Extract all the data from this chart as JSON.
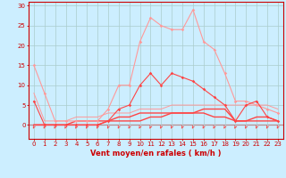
{
  "x": [
    0,
    1,
    2,
    3,
    4,
    5,
    6,
    7,
    8,
    9,
    10,
    11,
    12,
    13,
    14,
    15,
    16,
    17,
    18,
    19,
    20,
    21,
    22,
    23
  ],
  "series": [
    {
      "color": "#ff9999",
      "linewidth": 0.8,
      "marker": "D",
      "markersize": 1.8,
      "values": [
        15,
        8,
        1,
        1,
        1,
        1,
        1,
        4,
        10,
        10,
        21,
        27,
        25,
        24,
        24,
        29,
        21,
        19,
        13,
        6,
        6,
        5,
        4,
        3
      ]
    },
    {
      "color": "#ff4444",
      "linewidth": 0.8,
      "marker": "D",
      "markersize": 1.8,
      "values": [
        6,
        0,
        0,
        0,
        0,
        0,
        0,
        1,
        4,
        5,
        10,
        13,
        10,
        13,
        12,
        11,
        9,
        7,
        5,
        1,
        5,
        6,
        2,
        1
      ]
    },
    {
      "color": "#ff9999",
      "linewidth": 0.7,
      "marker": null,
      "markersize": 0,
      "values": [
        8,
        1,
        1,
        1,
        2,
        2,
        2,
        3,
        3,
        3,
        4,
        4,
        4,
        5,
        5,
        5,
        5,
        5,
        5,
        5,
        5,
        5,
        5,
        4
      ]
    },
    {
      "color": "#ff4444",
      "linewidth": 1.0,
      "marker": null,
      "markersize": 0,
      "values": [
        0,
        0,
        0,
        0,
        1,
        1,
        1,
        1,
        2,
        2,
        3,
        3,
        3,
        3,
        3,
        3,
        4,
        4,
        4,
        1,
        1,
        2,
        2,
        1
      ]
    },
    {
      "color": "#ff4444",
      "linewidth": 1.0,
      "marker": null,
      "markersize": 0,
      "values": [
        0,
        0,
        0,
        0,
        0,
        0,
        0,
        1,
        1,
        1,
        1,
        2,
        2,
        3,
        3,
        3,
        3,
        2,
        2,
        1,
        1,
        1,
        1,
        1
      ]
    }
  ],
  "wind_arrows": {
    "color": "#ff4444"
  },
  "xlim": [
    -0.5,
    23.5
  ],
  "ylim": [
    -3.5,
    31
  ],
  "yticks": [
    0,
    5,
    10,
    15,
    20,
    25,
    30
  ],
  "xticks": [
    0,
    1,
    2,
    3,
    4,
    5,
    6,
    7,
    8,
    9,
    10,
    11,
    12,
    13,
    14,
    15,
    16,
    17,
    18,
    19,
    20,
    21,
    22,
    23
  ],
  "xlabel": "Vent moyen/en rafales ( km/h )",
  "background_color": "#cceeff",
  "grid_color": "#aacccc",
  "axis_color": "#cc0000",
  "text_color": "#cc0000",
  "xlabel_fontsize": 6,
  "tick_fontsize": 5
}
